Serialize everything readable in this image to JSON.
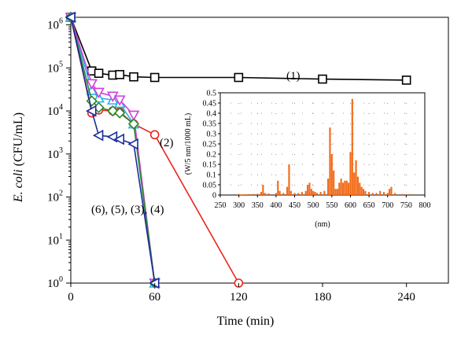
{
  "chart_data": [
    {
      "type": "line",
      "xlabel": "Time (min)",
      "ylabel_italic": "E. coli",
      "ylabel_rest": " (CFU/mL)",
      "yscale": "log",
      "xlim": [
        0,
        270
      ],
      "ylim": [
        1,
        1500000
      ],
      "x_ticks": [
        0,
        60,
        120,
        180,
        240
      ],
      "x_tick_labels": [
        "0",
        "60",
        "120",
        "180",
        "240"
      ],
      "y_ticks": [
        1,
        10,
        100,
        1000,
        10000,
        100000,
        1000000
      ],
      "y_tick_base": "10",
      "y_tick_exponents": [
        "0",
        "1",
        "2",
        "3",
        "4",
        "5",
        "6"
      ],
      "annotations": [
        "(1)",
        "(2)",
        "(6), (5), (3), (4)"
      ],
      "series": [
        {
          "name": "(1)",
          "color": "#000000",
          "marker": "square",
          "x": [
            0,
            15,
            20,
            30,
            35,
            45,
            60,
            120,
            180,
            240
          ],
          "y": [
            1500000,
            85000,
            75000,
            68000,
            70000,
            62000,
            60000,
            60000,
            55000,
            52000
          ]
        },
        {
          "name": "(2)",
          "color": "#e8261e",
          "marker": "circle",
          "x": [
            0,
            15,
            20,
            30,
            35,
            45,
            60,
            120
          ],
          "y": [
            1500000,
            9000,
            10500,
            10000,
            9500,
            5000,
            2800,
            1
          ]
        },
        {
          "name": "(3)",
          "color": "#2ab0e8",
          "marker": "triangle-up",
          "x": [
            0,
            15,
            20,
            30,
            35,
            45,
            60
          ],
          "y": [
            1500000,
            30000,
            20000,
            18000,
            15000,
            5000,
            1
          ]
        },
        {
          "name": "(4)",
          "color": "#d040d8",
          "marker": "triangle-down",
          "x": [
            0,
            15,
            20,
            30,
            35,
            45,
            60
          ],
          "y": [
            1500000,
            43000,
            27000,
            22000,
            18000,
            8000,
            1
          ]
        },
        {
          "name": "(5)",
          "color": "#2a8a2a",
          "marker": "diamond",
          "x": [
            0,
            15,
            20,
            30,
            35,
            45,
            60
          ],
          "y": [
            1500000,
            17000,
            12000,
            10000,
            9000,
            5000,
            1
          ]
        },
        {
          "name": "(6)",
          "color": "#1a2c9a",
          "marker": "triangle-left",
          "x": [
            0,
            15,
            20,
            30,
            35,
            45,
            60
          ],
          "y": [
            1500000,
            10000,
            2700,
            2500,
            2200,
            1700,
            1
          ]
        }
      ]
    },
    {
      "type": "bar",
      "xlabel": "(nm)",
      "ylabel": "(W/5 nm/1000 mL)",
      "xlim": [
        250,
        800
      ],
      "ylim": [
        0,
        0.5
      ],
      "x_ticks": [
        "250",
        "300",
        "350",
        "400",
        "450",
        "500",
        "550",
        "600",
        "650",
        "700",
        "750",
        "800"
      ],
      "y_ticks": [
        "0",
        "0.05",
        "0.1",
        "0.15",
        "0.2",
        "0.25",
        "0.3",
        "0.35",
        "0.4",
        "0.45",
        "0.5"
      ],
      "color": "#f26a18",
      "grid": "dotted",
      "x": [
        300,
        305,
        310,
        315,
        320,
        330,
        340,
        350,
        360,
        365,
        370,
        380,
        400,
        405,
        410,
        420,
        430,
        435,
        440,
        450,
        460,
        470,
        480,
        485,
        490,
        495,
        500,
        505,
        510,
        520,
        530,
        540,
        545,
        550,
        555,
        560,
        565,
        570,
        575,
        580,
        585,
        590,
        595,
        600,
        605,
        610,
        615,
        620,
        625,
        630,
        635,
        640,
        650,
        660,
        670,
        680,
        690,
        700,
        705,
        710,
        720,
        740,
        760
      ],
      "values": [
        0.005,
        0.003,
        0.003,
        0.004,
        0.003,
        0.004,
        0.005,
        0.006,
        0.015,
        0.05,
        0.01,
        0.008,
        0.01,
        0.07,
        0.02,
        0.01,
        0.04,
        0.15,
        0.02,
        0.01,
        0.01,
        0.015,
        0.02,
        0.05,
        0.06,
        0.03,
        0.02,
        0.015,
        0.01,
        0.015,
        0.02,
        0.08,
        0.33,
        0.2,
        0.12,
        0.03,
        0.03,
        0.06,
        0.08,
        0.06,
        0.07,
        0.07,
        0.06,
        0.21,
        0.47,
        0.11,
        0.17,
        0.09,
        0.06,
        0.04,
        0.03,
        0.02,
        0.015,
        0.01,
        0.01,
        0.02,
        0.015,
        0.01,
        0.03,
        0.04,
        0.01,
        0.005,
        0.005
      ]
    }
  ]
}
